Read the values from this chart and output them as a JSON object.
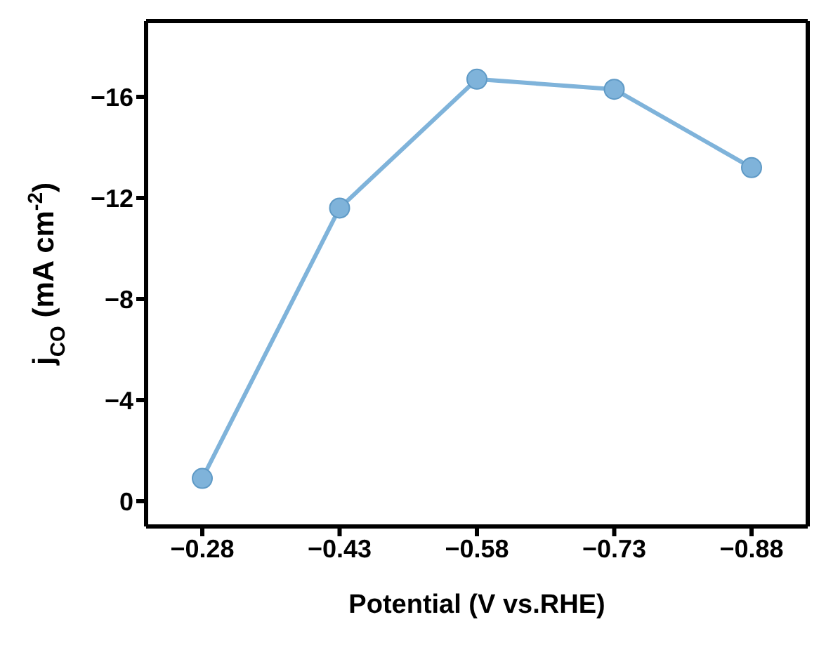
{
  "chart_data": {
    "type": "line",
    "xlabel": "Potential (V vs.RHE)",
    "ylabel": "j$_{CO}$ (mA cm$^{-2}$)",
    "categories": [
      "−0.28",
      "−0.43",
      "−0.58",
      "−0.73",
      "−0.88"
    ],
    "series": [
      {
        "color": "#7fb3da",
        "values": [
          -0.9,
          -11.6,
          -16.7,
          -16.3,
          -13.2
        ]
      }
    ],
    "ylim": [
      1,
      -19
    ],
    "yticks": [
      0,
      -4,
      -8,
      -12,
      -16
    ],
    "marker": "circle",
    "line_style": "solid",
    "grid": false,
    "legend": false
  }
}
